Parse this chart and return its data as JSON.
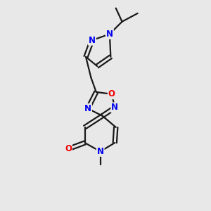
{
  "bg_color": "#e8e8e8",
  "bond_color": "#1a1a1a",
  "bond_width": 1.6,
  "atom_colors": {
    "N": "#0000ee",
    "O": "#ee0000",
    "C": "#1a1a1a"
  },
  "font_size_atom": 8.5,
  "fig_size": [
    3.0,
    3.0
  ],
  "dpi": 100
}
